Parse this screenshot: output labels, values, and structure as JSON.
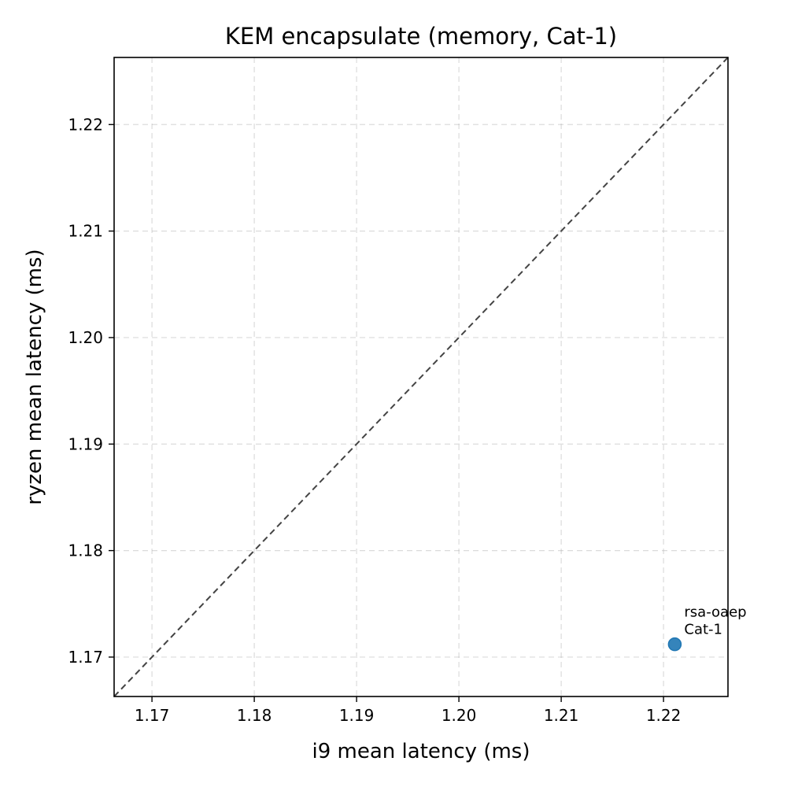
{
  "chart_data": {
    "type": "scatter",
    "title": "KEM encapsulate (memory, Cat-1)",
    "xlabel": "i9 mean latency (ms)",
    "ylabel": "ryzen mean latency (ms)",
    "xlim": [
      1.1663,
      1.2263
    ],
    "ylim": [
      1.1663,
      1.2263
    ],
    "xticks": [
      "1.17",
      "1.18",
      "1.19",
      "1.20",
      "1.21",
      "1.22"
    ],
    "yticks": [
      "1.17",
      "1.18",
      "1.19",
      "1.20",
      "1.21",
      "1.22"
    ],
    "grid": true,
    "reference_line": "y = x",
    "reference_line_color": "#444444",
    "point_color": "#1f77b4",
    "points": [
      {
        "x": 1.2211,
        "y": 1.1712,
        "label_line1": "rsa-oaep",
        "label_line2": "Cat-1"
      }
    ]
  }
}
